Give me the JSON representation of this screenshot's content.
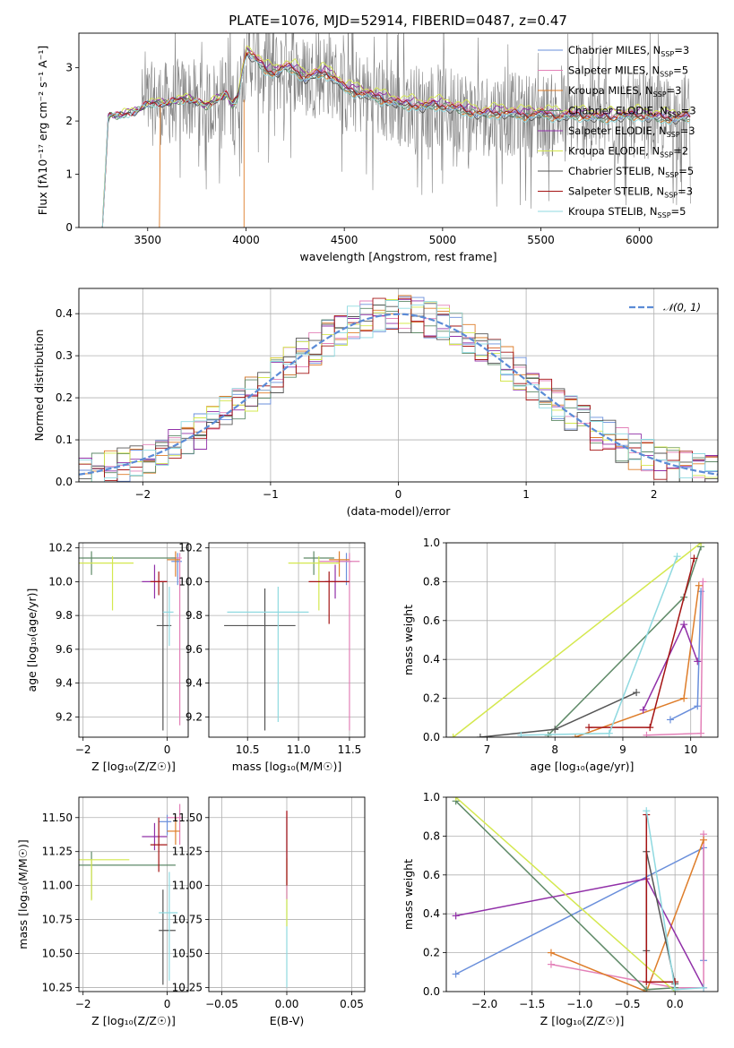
{
  "figure": {
    "title": "PLATE=1076, MJD=52914, FIBERID=0487, z=0.47"
  },
  "colors": {
    "Chabrier MILES": "#6a8fdb",
    "Salpeter MILES": "#e381b8",
    "Kroupa MILES": "#de7d2a",
    "Chabrier ELODIE": "#5f8a68",
    "Salpeter ELODIE": "#9130a8",
    "Kroupa ELODIE": "#d4e84e",
    "Chabrier STELIB": "#555555",
    "Salpeter STELIB": "#a51414",
    "Kroupa STELIB": "#8fd9e0",
    "normal": "#5b8bd6"
  },
  "chart_data": [
    {
      "id": "spectrum",
      "type": "line",
      "xlabel": "wavelength [Angstrom, rest frame]",
      "ylabel": "Flux [fλ10⁻¹⁷ erg cm⁻² s⁻¹ A⁻¹]",
      "xlim": [
        3150,
        6400
      ],
      "ylim": [
        0,
        3.65
      ],
      "xticks": [
        3500,
        4000,
        4500,
        5000,
        5500,
        6000
      ],
      "yticks": [
        0,
        1,
        2,
        3
      ],
      "grid": false,
      "legend_position": "top-right",
      "data_series": {
        "name": "data",
        "x_range": [
          3270,
          6260
        ],
        "level": 2.3,
        "noise_amplitude": 0.8
      },
      "series": [
        {
          "name": "Chabrier MILES",
          "nssp": "3",
          "start": 3270
        },
        {
          "name": "Salpeter MILES",
          "nssp": "5",
          "start": 3270
        },
        {
          "name": "Kroupa MILES",
          "nssp": "3",
          "start": 3560
        },
        {
          "name": "Chabrier ELODIE",
          "nssp": "3",
          "start": 3270
        },
        {
          "name": "Salpeter ELODIE",
          "nssp": "3",
          "start": 3270
        },
        {
          "name": "Kroupa ELODIE",
          "nssp": "2",
          "start": 3270
        },
        {
          "name": "Chabrier STELIB",
          "nssp": "5",
          "start": 3270
        },
        {
          "name": "Salpeter STELIB",
          "nssp": "3",
          "start": 3270
        },
        {
          "name": "Kroupa STELIB",
          "nssp": "5",
          "start": 3270
        }
      ],
      "model_profile": [
        [
          3270,
          0
        ],
        [
          3300,
          2.12
        ],
        [
          3350,
          2.08
        ],
        [
          3400,
          2.15
        ],
        [
          3450,
          2.2
        ],
        [
          3500,
          2.3
        ],
        [
          3550,
          2.35
        ],
        [
          3600,
          2.32
        ],
        [
          3650,
          2.38
        ],
        [
          3700,
          2.42
        ],
        [
          3750,
          2.35
        ],
        [
          3800,
          2.28
        ],
        [
          3850,
          2.4
        ],
        [
          3900,
          2.5
        ],
        [
          3930,
          2.3
        ],
        [
          3960,
          2.45
        ],
        [
          4000,
          3.3
        ],
        [
          4050,
          3.15
        ],
        [
          4100,
          2.95
        ],
        [
          4150,
          2.9
        ],
        [
          4200,
          3.0
        ],
        [
          4250,
          2.95
        ],
        [
          4300,
          2.8
        ],
        [
          4350,
          2.85
        ],
        [
          4400,
          2.9
        ],
        [
          4450,
          2.8
        ],
        [
          4500,
          2.6
        ],
        [
          4550,
          2.55
        ],
        [
          4600,
          2.5
        ],
        [
          4650,
          2.45
        ],
        [
          4700,
          2.4
        ],
        [
          4750,
          2.35
        ],
        [
          4800,
          2.3
        ],
        [
          4850,
          2.3
        ],
        [
          4900,
          2.25
        ],
        [
          4950,
          2.3
        ],
        [
          5000,
          2.28
        ],
        [
          5100,
          2.2
        ],
        [
          5200,
          2.12
        ],
        [
          5300,
          2.15
        ],
        [
          5400,
          2.1
        ],
        [
          5500,
          2.12
        ],
        [
          5600,
          2.08
        ],
        [
          5700,
          2.1
        ],
        [
          5800,
          2.05
        ],
        [
          5900,
          2.08
        ],
        [
          6000,
          2.1
        ],
        [
          6100,
          2.05
        ],
        [
          6200,
          2.05
        ],
        [
          6260,
          2.05
        ]
      ]
    },
    {
      "id": "residuals",
      "type": "line",
      "xlabel": "(data-model)/error",
      "ylabel": "Normed distribution",
      "xlim": [
        -2.5,
        2.5
      ],
      "ylim": [
        0,
        0.46
      ],
      "xticks": [
        -2,
        -1,
        0,
        1,
        2
      ],
      "yticks": [
        0.0,
        0.1,
        0.2,
        0.3,
        0.4
      ],
      "grid": true,
      "legend_position": "top-right",
      "legend": [
        "𝒩(0, 1)"
      ],
      "curve": {
        "type": "normal",
        "mean": 0,
        "sigma": 1
      },
      "bin_width": 0.1,
      "noise_amplitude": 0.045
    },
    {
      "id": "age-vs-z",
      "type": "scatter",
      "xlabel": "Z [log₁₀(Z/Z☉)]",
      "ylabel": "age  [log₁₀(age/yr)]",
      "xlim": [
        -2.1,
        0.5
      ],
      "ylim": [
        9.08,
        10.23
      ],
      "xticks": [
        -2,
        0
      ],
      "yticks": [
        9.2,
        9.4,
        9.6,
        9.8,
        10.0,
        10.2
      ],
      "grid": true,
      "points": [
        {
          "series": "Chabrier MILES",
          "x": 0.25,
          "y": 10.12,
          "xerr": [
            0.15,
            0.1
          ],
          "yerr": [
            0.14,
            0.05
          ]
        },
        {
          "series": "Salpeter MILES",
          "x": 0.3,
          "y": 10.14,
          "xerr": [
            0.2,
            0.05
          ],
          "yerr": [
            0.99,
            0.03
          ]
        },
        {
          "series": "Kroupa MILES",
          "x": 0.2,
          "y": 10.13,
          "xerr": [
            0.2,
            0.1
          ],
          "yerr": [
            0.1,
            0.05
          ]
        },
        {
          "series": "Chabrier ELODIE",
          "x": -1.8,
          "y": 10.14,
          "xerr": [
            0.3,
            2.0
          ],
          "yerr": [
            0.1,
            0.04
          ]
        },
        {
          "series": "Salpeter ELODIE",
          "x": -0.3,
          "y": 10.0,
          "xerr": [
            0.3,
            0.3
          ],
          "yerr": [
            0.1,
            0.1
          ]
        },
        {
          "series": "Kroupa ELODIE",
          "x": -1.3,
          "y": 10.11,
          "xerr": [
            0.8,
            0.5
          ],
          "yerr": [
            0.28,
            0.04
          ]
        },
        {
          "series": "Chabrier STELIB",
          "x": -0.1,
          "y": 9.74,
          "xerr": [
            0.15,
            0.2
          ],
          "yerr": [
            0.62,
            0.26
          ]
        },
        {
          "series": "Salpeter STELIB",
          "x": -0.2,
          "y": 10.0,
          "xerr": [
            0.2,
            0.2
          ],
          "yerr": [
            0.08,
            0.06
          ]
        },
        {
          "series": "Kroupa STELIB",
          "x": 0.05,
          "y": 9.82,
          "xerr": [
            0.15,
            0.1
          ],
          "yerr": [
            0.2,
            0.15
          ]
        }
      ]
    },
    {
      "id": "age-vs-mass",
      "type": "scatter",
      "xlabel": "mass [log₁₀(M/M☉)]",
      "ylabel": "",
      "xlim": [
        10.12,
        11.65
      ],
      "ylim": [
        9.08,
        10.23
      ],
      "xticks": [
        10.5,
        11.0,
        11.5
      ],
      "yticks": [
        9.2,
        9.4,
        9.6,
        9.8,
        10.0,
        10.2
      ],
      "grid": true,
      "points": [
        {
          "series": "Chabrier MILES",
          "x": 11.47,
          "y": 10.12,
          "xerr": [
            0.1,
            0.05
          ],
          "yerr": [
            0.14,
            0.05
          ]
        },
        {
          "series": "Salpeter MILES",
          "x": 11.5,
          "y": 10.12,
          "xerr": [
            0.3,
            0.1
          ],
          "yerr": [
            1.0,
            0.05
          ]
        },
        {
          "series": "Kroupa MILES",
          "x": 11.4,
          "y": 10.13,
          "xerr": [
            0.1,
            0.1
          ],
          "yerr": [
            0.1,
            0.05
          ]
        },
        {
          "series": "Chabrier ELODIE",
          "x": 11.15,
          "y": 10.14,
          "xerr": [
            0.1,
            0.2
          ],
          "yerr": [
            0.1,
            0.04
          ]
        },
        {
          "series": "Salpeter ELODIE",
          "x": 11.36,
          "y": 10.0,
          "xerr": [
            0.1,
            0.1
          ],
          "yerr": [
            0.1,
            0.1
          ]
        },
        {
          "series": "Kroupa ELODIE",
          "x": 11.2,
          "y": 10.11,
          "xerr": [
            0.3,
            0.2
          ],
          "yerr": [
            0.28,
            0.04
          ]
        },
        {
          "series": "Chabrier STELIB",
          "x": 10.67,
          "y": 9.74,
          "xerr": [
            0.4,
            0.3
          ],
          "yerr": [
            0.62,
            0.22
          ]
        },
        {
          "series": "Salpeter STELIB",
          "x": 11.3,
          "y": 10.0,
          "xerr": [
            0.2,
            0.2
          ],
          "yerr": [
            0.25,
            0.06
          ]
        },
        {
          "series": "Kroupa STELIB",
          "x": 10.8,
          "y": 9.82,
          "xerr": [
            0.5,
            0.3
          ],
          "yerr": [
            0.65,
            0.15
          ]
        }
      ]
    },
    {
      "id": "weight-vs-age",
      "type": "line",
      "xlabel": "age  [log₁₀(age/yr)]",
      "ylabel": "mass weight",
      "xlim": [
        6.4,
        10.4
      ],
      "ylim": [
        0,
        1.0
      ],
      "xticks": [
        7,
        8,
        9,
        10
      ],
      "yticks": [
        0.0,
        0.2,
        0.4,
        0.6,
        0.8,
        1.0
      ],
      "grid": true,
      "series": [
        {
          "name": "Chabrier MILES",
          "x": [
            9.7,
            10.1,
            10.15
          ],
          "y": [
            0.09,
            0.16,
            0.75
          ]
        },
        {
          "name": "Salpeter MILES",
          "x": [
            9.35,
            10.15,
            10.18
          ],
          "y": [
            0.01,
            0.02,
            0.8
          ]
        },
        {
          "name": "Kroupa MILES",
          "x": [
            8.3,
            9.9,
            10.12
          ],
          "y": [
            0.0,
            0.2,
            0.78
          ]
        },
        {
          "name": "Chabrier ELODIE",
          "x": [
            7.9,
            9.9,
            10.15
          ],
          "y": [
            0.01,
            0.72,
            0.98
          ]
        },
        {
          "name": "Salpeter ELODIE",
          "x": [
            9.3,
            9.9,
            10.1
          ],
          "y": [
            0.14,
            0.58,
            0.39
          ]
        },
        {
          "name": "Kroupa ELODIE",
          "x": [
            6.5,
            10.15
          ],
          "y": [
            0.0,
            1.0
          ]
        },
        {
          "name": "Chabrier STELIB",
          "x": [
            6.9,
            8.0,
            9.2
          ],
          "y": [
            0.0,
            0.04,
            0.23
          ]
        },
        {
          "name": "Salpeter STELIB",
          "x": [
            8.5,
            9.4,
            10.05
          ],
          "y": [
            0.05,
            0.05,
            0.92
          ]
        },
        {
          "name": "Kroupa STELIB",
          "x": [
            7.5,
            8.8,
            9.8
          ],
          "y": [
            0.01,
            0.02,
            0.93
          ]
        }
      ]
    },
    {
      "id": "mass-vs-z",
      "type": "scatter",
      "xlabel": "Z [log₁₀(Z/Z☉)]",
      "ylabel": "mass [log₁₀(M/M☉)]",
      "xlim": [
        -2.1,
        0.5
      ],
      "ylim": [
        10.22,
        11.65
      ],
      "xticks": [
        -2,
        0
      ],
      "yticks": [
        10.25,
        10.5,
        10.75,
        11.0,
        11.25,
        11.5
      ],
      "grid": true,
      "points": [
        {
          "series": "Chabrier MILES",
          "x": 0.0,
          "y": 11.47,
          "xerr": [
            0.2,
            0.1
          ],
          "yerr": [
            0.1,
            0.05
          ]
        },
        {
          "series": "Salpeter MILES",
          "x": 0.3,
          "y": 11.5,
          "xerr": [
            0.3,
            0.05
          ],
          "yerr": [
            0.2,
            0.1
          ]
        },
        {
          "series": "Kroupa MILES",
          "x": 0.2,
          "y": 11.4,
          "xerr": [
            0.2,
            0.1
          ],
          "yerr": [
            0.1,
            0.1
          ]
        },
        {
          "series": "Chabrier ELODIE",
          "x": -1.8,
          "y": 11.15,
          "xerr": [
            0.3,
            2.0
          ],
          "yerr": [
            0.25,
            0.1
          ]
        },
        {
          "series": "Salpeter ELODIE",
          "x": -0.3,
          "y": 11.36,
          "xerr": [
            0.3,
            0.3
          ],
          "yerr": [
            0.1,
            0.1
          ]
        },
        {
          "series": "Kroupa ELODIE",
          "x": -1.8,
          "y": 11.19,
          "xerr": [
            0.3,
            0.9
          ],
          "yerr": [
            0.3,
            0.0
          ]
        },
        {
          "series": "Chabrier STELIB",
          "x": -0.1,
          "y": 10.67,
          "xerr": [
            0.1,
            0.3
          ],
          "yerr": [
            0.4,
            0.3
          ]
        },
        {
          "series": "Salpeter STELIB",
          "x": -0.2,
          "y": 11.3,
          "xerr": [
            0.2,
            0.2
          ],
          "yerr": [
            0.2,
            0.2
          ]
        },
        {
          "series": "Kroupa STELIB",
          "x": 0.05,
          "y": 10.8,
          "xerr": [
            0.25,
            0.2
          ],
          "yerr": [
            0.5,
            0.3
          ]
        }
      ]
    },
    {
      "id": "mass-vs-ebv",
      "type": "scatter",
      "xlabel": "E(B-V)",
      "ylabel": "",
      "xlim": [
        -0.06,
        0.06
      ],
      "ylim": [
        10.22,
        11.65
      ],
      "xticks": [
        -0.05,
        0.0,
        0.05
      ],
      "yticks": [
        10.25,
        10.5,
        10.75,
        11.0,
        11.25,
        11.5
      ],
      "grid": true,
      "points": [
        {
          "series": "Kroupa STELIB",
          "x": 0.0,
          "y": 10.8,
          "yerr": [
            0.55,
            0.7
          ]
        },
        {
          "series": "Kroupa ELODIE",
          "x": 0.0,
          "y": 11.0,
          "yerr": [
            0.3,
            0.2
          ]
        },
        {
          "series": "Salpeter MILES",
          "x": 0.0,
          "y": 11.5,
          "yerr": [
            0.6,
            0.05
          ]
        },
        {
          "series": "Salpeter STELIB",
          "x": 0.0,
          "y": 11.3,
          "yerr": [
            0.3,
            0.25
          ]
        }
      ]
    },
    {
      "id": "weight-vs-z",
      "type": "line",
      "xlabel": "Z [log₁₀(Z/Z☉)]",
      "ylabel": "mass weight",
      "xlim": [
        -2.4,
        0.45
      ],
      "ylim": [
        0,
        1.0
      ],
      "xticks": [
        -2.0,
        -1.5,
        -1.0,
        -0.5,
        0.0
      ],
      "yticks": [
        0.0,
        0.2,
        0.4,
        0.6,
        0.8,
        1.0
      ],
      "grid": true,
      "series": [
        {
          "name": "Chabrier MILES",
          "x": [
            -2.3,
            0.3,
            0.3
          ],
          "y": [
            0.09,
            0.74,
            0.16
          ]
        },
        {
          "name": "Salpeter MILES",
          "x": [
            -1.3,
            0.0,
            0.3,
            0.3
          ],
          "y": [
            0.14,
            0.02,
            0.02,
            0.81
          ]
        },
        {
          "name": "Kroupa MILES",
          "x": [
            -1.3,
            -0.3,
            0.3
          ],
          "y": [
            0.2,
            0.0,
            0.78
          ]
        },
        {
          "name": "Chabrier ELODIE",
          "x": [
            -2.3,
            -0.3,
            0.0
          ],
          "y": [
            0.98,
            0.01,
            0.02
          ]
        },
        {
          "name": "Salpeter ELODIE",
          "x": [
            -2.3,
            -0.3,
            0.3
          ],
          "y": [
            0.39,
            0.58,
            0.02
          ]
        },
        {
          "name": "Kroupa ELODIE",
          "x": [
            -2.3,
            0.0
          ],
          "y": [
            1.0,
            0.0
          ]
        },
        {
          "name": "Chabrier STELIB",
          "x": [
            -0.3,
            -0.3,
            0.0
          ],
          "y": [
            0.21,
            0.72,
            0.04
          ]
        },
        {
          "name": "Salpeter STELIB",
          "x": [
            -0.3,
            -0.3,
            0.0
          ],
          "y": [
            0.91,
            0.05,
            0.05
          ]
        },
        {
          "name": "Kroupa STELIB",
          "x": [
            -0.3,
            0.0,
            0.3
          ],
          "y": [
            0.93,
            0.01,
            0.02
          ]
        }
      ]
    }
  ]
}
